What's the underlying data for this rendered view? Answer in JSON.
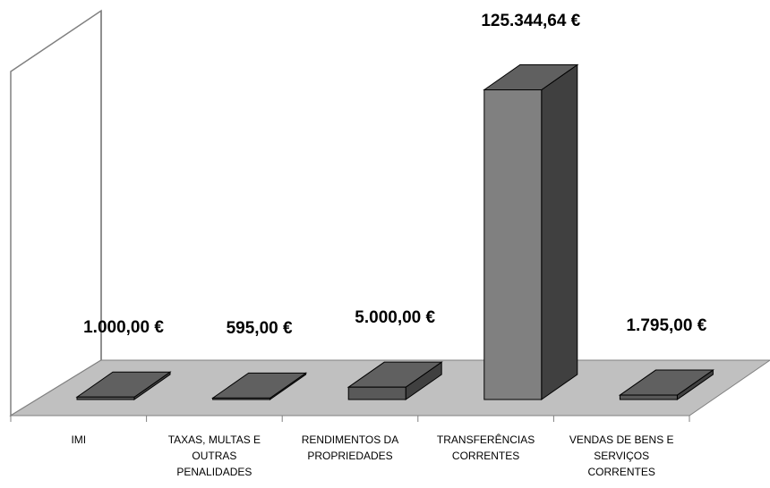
{
  "chart_data": {
    "type": "bar3d",
    "categories": [
      "IMI",
      "TAXAS, MULTAS E\nOUTRAS\nPENALIDADES",
      "RENDIMENTOS DA\nPROPRIEDADES",
      "TRANSFERÊNCIAS\nCORRENTES",
      "VENDAS DE BENS E\nSERVIÇOS\nCORRENTES"
    ],
    "values": [
      1000,
      595,
      5000,
      125344.64,
      1795
    ],
    "value_labels": [
      "1.000,00 €",
      "595,00 €",
      "5.000,00 €",
      "125.344,64 €",
      "1.795,00 €"
    ],
    "ylim": [
      0,
      140000
    ],
    "colors": [
      "#595959",
      "#595959",
      "#595959",
      "#808080",
      "#595959"
    ]
  }
}
